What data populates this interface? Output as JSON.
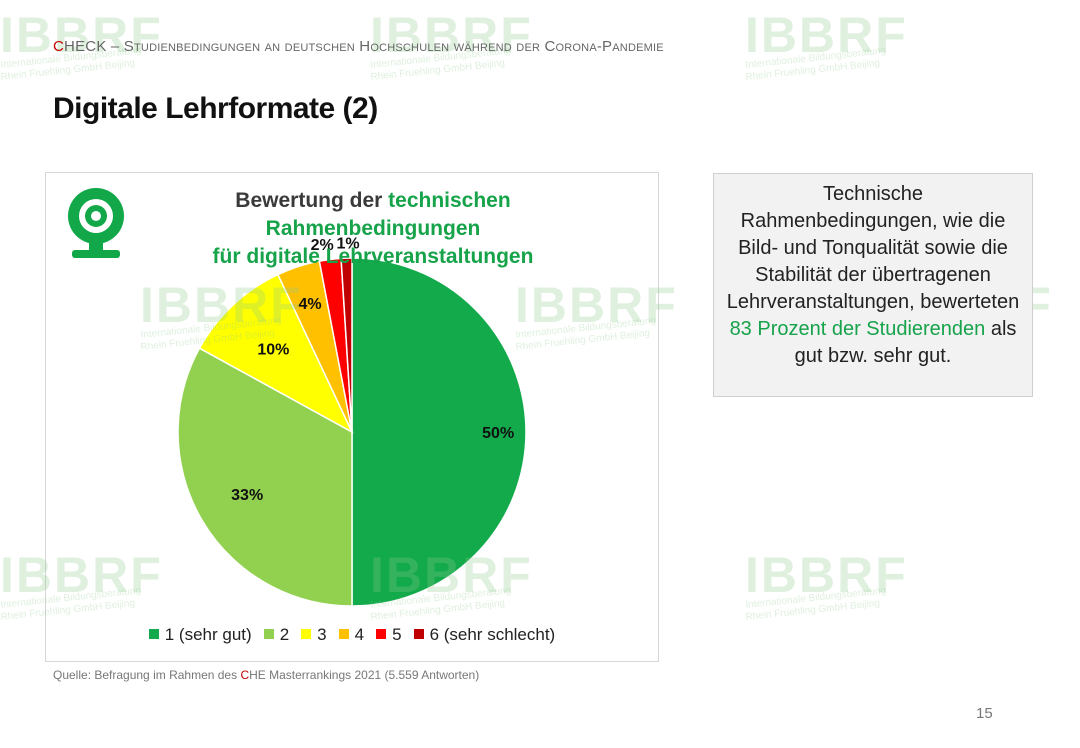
{
  "header": {
    "prefix_red": "C",
    "prefix_rest": "HECK",
    "text": " – Studienbedingungen an deutschen Hochschulen während der Corona-Pandemie"
  },
  "page_title": "Digitale Lehrformate (2)",
  "chart_data": {
    "type": "pie",
    "title_part1": "Bewertung der ",
    "title_part2": "technischen Rahmenbedingungen",
    "title_part3": "für digitale Lehrveranstaltungen",
    "categories": [
      "1 (sehr gut)",
      "2",
      "3",
      "4",
      "5",
      "6 (sehr schlecht)"
    ],
    "values": [
      50,
      33,
      10,
      4,
      2,
      1
    ],
    "data_labels": [
      "50%",
      "33%",
      "10%",
      "4%",
      "2%",
      "1%"
    ],
    "colors": [
      "#12aa4b",
      "#92d050",
      "#ffff00",
      "#ffc000",
      "#ff0000",
      "#c00000"
    ],
    "legend_position": "bottom",
    "start_angle_deg": 0,
    "direction": "clockwise",
    "icon": "webcam-icon"
  },
  "info_box": {
    "text_before": "Technische Rahmenbedingungen, wie die Bild- und Tonqualität sowie die Stabilität der übertragenen Lehrveranstaltungen, bewerteten ",
    "highlight": "83 Prozent der Studierenden",
    "text_after": " als gut bzw. sehr gut."
  },
  "source": {
    "prefix": "Quelle: Befragung im Rahmen des ",
    "red": "C",
    "suffix": "HE Masterrankings 2021 (5.559 Antworten)"
  },
  "page_number": "15",
  "watermark": {
    "brand": "IBBRF",
    "line1": "Internationale Bildungsberatung",
    "line2": "Rhein Fruehling GmbH Beijing"
  },
  "colors": {
    "accent_green": "#16a34a",
    "accent_red": "#c00000"
  }
}
